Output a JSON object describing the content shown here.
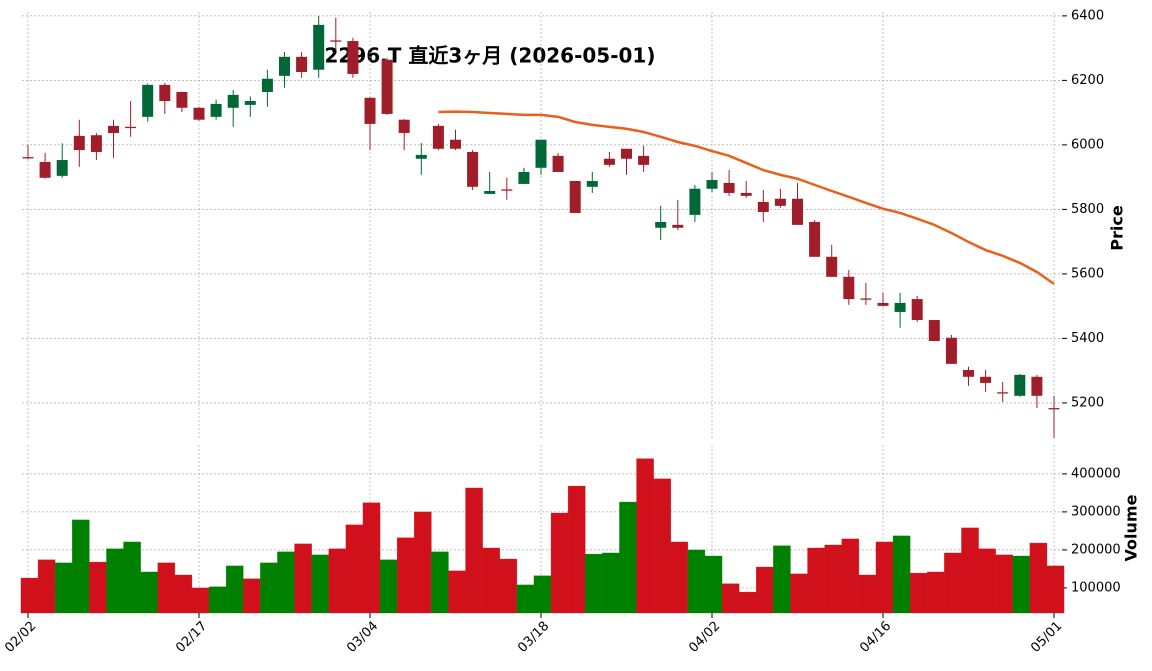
{
  "chart_data": [
    {
      "type": "candlestick",
      "title": "2296.T  直近3ヶ月  (2026-05-01)",
      "ylabel": "Price",
      "ylim": [
        5085,
        6412
      ],
      "yticks": [
        5200,
        5400,
        5600,
        5800,
        6000,
        6200,
        6400
      ],
      "grid": true,
      "up_color": "#006837",
      "down_color": "#a01e2a",
      "open": [
        5962,
        5947,
        5904,
        6028,
        6030,
        6059,
        6056,
        6087,
        6186,
        6164,
        6115,
        6087,
        6115,
        6124,
        6164,
        6214,
        6273,
        6233,
        6324,
        6322,
        6146,
        6264,
        6078,
        5957,
        6059,
        6016,
        5978,
        5848,
        5862,
        5879,
        5929,
        5966,
        5888,
        5870,
        5957,
        5988,
        5966,
        5743,
        5752,
        5783,
        5864,
        5882,
        5851,
        5823,
        5833,
        5833,
        5761,
        5653,
        5591,
        5524,
        5510,
        5482,
        5522,
        5457,
        5402,
        5302,
        5281,
        5233,
        5222,
        5281,
        5184
      ],
      "high": [
        6000,
        5975,
        6005,
        6078,
        6037,
        6078,
        6136,
        6190,
        6192,
        6165,
        6118,
        6140,
        6170,
        6150,
        6233,
        6288,
        6288,
        6400,
        6394,
        6332,
        6148,
        6270,
        6080,
        6006,
        6065,
        6047,
        5984,
        5916,
        5898,
        5929,
        6016,
        5975,
        5888,
        5916,
        5978,
        5988,
        5997,
        5811,
        5829,
        5876,
        5916,
        5922,
        5888,
        5860,
        5864,
        5882,
        5767,
        5690,
        5612,
        5572,
        5541,
        5541,
        5532,
        5457,
        5411,
        5312,
        5302,
        5265,
        5290,
        5287,
        5222
      ],
      "low": [
        5955,
        5895,
        5898,
        5932,
        5953,
        5960,
        6025,
        6072,
        6096,
        6102,
        6075,
        6078,
        6056,
        6087,
        6118,
        6177,
        6208,
        6208,
        6294,
        6208,
        5984,
        6093,
        5984,
        5907,
        5984,
        5984,
        5860,
        5848,
        5830,
        5879,
        5907,
        5916,
        5789,
        5851,
        5932,
        5907,
        5916,
        5705,
        5736,
        5761,
        5854,
        5842,
        5836,
        5761,
        5805,
        5752,
        5653,
        5591,
        5504,
        5504,
        5498,
        5433,
        5451,
        5392,
        5321,
        5253,
        5234,
        5203,
        5219,
        5184,
        5091
      ],
      "close": [
        5958,
        5898,
        5953,
        5984,
        5978,
        6037,
        6052,
        6186,
        6136,
        6115,
        6078,
        6127,
        6155,
        6136,
        6205,
        6273,
        6226,
        6372,
        6320,
        6220,
        6065,
        6096,
        6037,
        5969,
        5988,
        5988,
        5870,
        5857,
        5858,
        5916,
        6016,
        5916,
        5789,
        5888,
        5938,
        5957,
        5938,
        5761,
        5743,
        5864,
        5891,
        5851,
        5842,
        5792,
        5811,
        5752,
        5653,
        5591,
        5522,
        5520,
        5501,
        5510,
        5457,
        5392,
        5321,
        5281,
        5262,
        5229,
        5287,
        5222,
        5180
      ],
      "moving_average": {
        "color": "#e8601c",
        "values": [
          null,
          null,
          null,
          null,
          null,
          null,
          null,
          null,
          null,
          null,
          null,
          null,
          null,
          null,
          null,
          null,
          null,
          null,
          null,
          null,
          null,
          null,
          null,
          null,
          6102,
          6103,
          6102,
          6099,
          6096,
          6093,
          6093,
          6087,
          6071,
          6062,
          6056,
          6050,
          6040,
          6025,
          6009,
          5997,
          5981,
          5966,
          5944,
          5922,
          5907,
          5895,
          5876,
          5857,
          5839,
          5820,
          5802,
          5789,
          5771,
          5752,
          5727,
          5699,
          5674,
          5656,
          5634,
          5606,
          5569
        ]
      }
    },
    {
      "type": "bar",
      "ylabel": "Volume",
      "ylim": [
        34000,
        476000
      ],
      "yticks": [
        100000,
        200000,
        300000,
        400000
      ],
      "grid": true,
      "categories": [
        "02/02",
        null,
        null,
        null,
        null,
        null,
        null,
        null,
        null,
        null,
        "02/17",
        null,
        null,
        null,
        null,
        null,
        null,
        null,
        null,
        null,
        "03/04",
        null,
        null,
        null,
        null,
        null,
        null,
        null,
        null,
        null,
        "03/18",
        null,
        null,
        null,
        null,
        null,
        null,
        null,
        null,
        null,
        "04/02",
        null,
        null,
        null,
        null,
        null,
        null,
        null,
        null,
        null,
        "04/16",
        null,
        null,
        null,
        null,
        null,
        null,
        null,
        null,
        null,
        "05/01"
      ],
      "values": [
        126000,
        174000,
        166000,
        279000,
        168000,
        203000,
        221000,
        142000,
        166000,
        134000,
        100000,
        103000,
        158000,
        124000,
        166000,
        195000,
        216000,
        187000,
        203000,
        266000,
        324000,
        174000,
        232000,
        300000,
        195000,
        145000,
        363000,
        205000,
        176000,
        108000,
        132000,
        297000,
        368000,
        189000,
        192000,
        326000,
        440000,
        387000,
        221000,
        200000,
        184000,
        111000,
        89000,
        155000,
        211000,
        137000,
        205000,
        213000,
        229000,
        134000,
        221000,
        237000,
        139000,
        142000,
        192000,
        258000,
        203000,
        187000,
        184000,
        218000,
        158000
      ],
      "colors": [
        "#d0101a",
        "#d0101a",
        "#008000",
        "#008000",
        "#d0101a",
        "#008000",
        "#008000",
        "#008000",
        "#d0101a",
        "#d0101a",
        "#d0101a",
        "#008000",
        "#008000",
        "#d0101a",
        "#008000",
        "#008000",
        "#d0101a",
        "#008000",
        "#d0101a",
        "#d0101a",
        "#d0101a",
        "#008000",
        "#d0101a",
        "#d0101a",
        "#008000",
        "#d0101a",
        "#d0101a",
        "#d0101a",
        "#d0101a",
        "#008000",
        "#008000",
        "#d0101a",
        "#d0101a",
        "#008000",
        "#008000",
        "#008000",
        "#d0101a",
        "#d0101a",
        "#d0101a",
        "#008000",
        "#008000",
        "#d0101a",
        "#d0101a",
        "#d0101a",
        "#008000",
        "#d0101a",
        "#d0101a",
        "#d0101a",
        "#d0101a",
        "#d0101a",
        "#d0101a",
        "#008000",
        "#d0101a",
        "#d0101a",
        "#d0101a",
        "#d0101a",
        "#d0101a",
        "#d0101a",
        "#008000",
        "#d0101a",
        "#d0101a"
      ]
    }
  ]
}
